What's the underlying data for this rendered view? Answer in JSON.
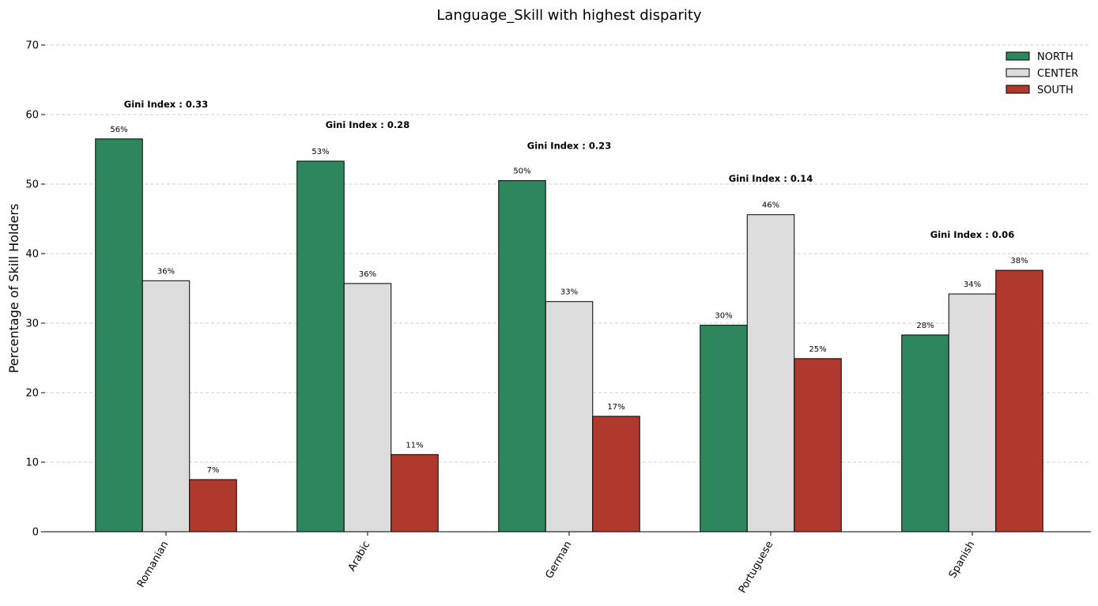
{
  "chart_data": {
    "type": "bar",
    "title": "Language_Skill with highest disparity",
    "xlabel": "",
    "ylabel": "Percentage of Skill Holders",
    "ylim": [
      0,
      70
    ],
    "yticks": [
      0,
      10,
      20,
      30,
      40,
      50,
      60,
      70
    ],
    "grid": "y-dashed",
    "legend_position": "top-right",
    "categories": [
      "Romanian",
      "Arabic",
      "German",
      "Portuguese",
      "Spanish"
    ],
    "series": [
      {
        "name": "NORTH",
        "color": "#2e865c",
        "values": [
          56.5,
          53.3,
          50.5,
          29.7,
          28.3
        ],
        "labels": [
          "56%",
          "53%",
          "50%",
          "30%",
          "28%"
        ]
      },
      {
        "name": "CENTER",
        "color": "#dcdcdc",
        "values": [
          36.1,
          35.7,
          33.1,
          45.6,
          34.2
        ],
        "labels": [
          "36%",
          "36%",
          "33%",
          "46%",
          "34%"
        ]
      },
      {
        "name": "SOUTH",
        "color": "#b0392e",
        "values": [
          7.5,
          11.1,
          16.6,
          24.9,
          37.6
        ],
        "labels": [
          "7%",
          "11%",
          "17%",
          "25%",
          "38%"
        ]
      }
    ],
    "annotations": [
      {
        "category": "Romanian",
        "text": "Gini Index :  0.33",
        "y": 61.5
      },
      {
        "category": "Arabic",
        "text": "Gini Index :  0.28",
        "y": 58.5
      },
      {
        "category": "German",
        "text": "Gini Index :  0.23",
        "y": 55.5
      },
      {
        "category": "Portuguese",
        "text": "Gini Index :  0.14",
        "y": 50.8
      },
      {
        "category": "Spanish",
        "text": "Gini Index :  0.06",
        "y": 42.7
      }
    ]
  }
}
